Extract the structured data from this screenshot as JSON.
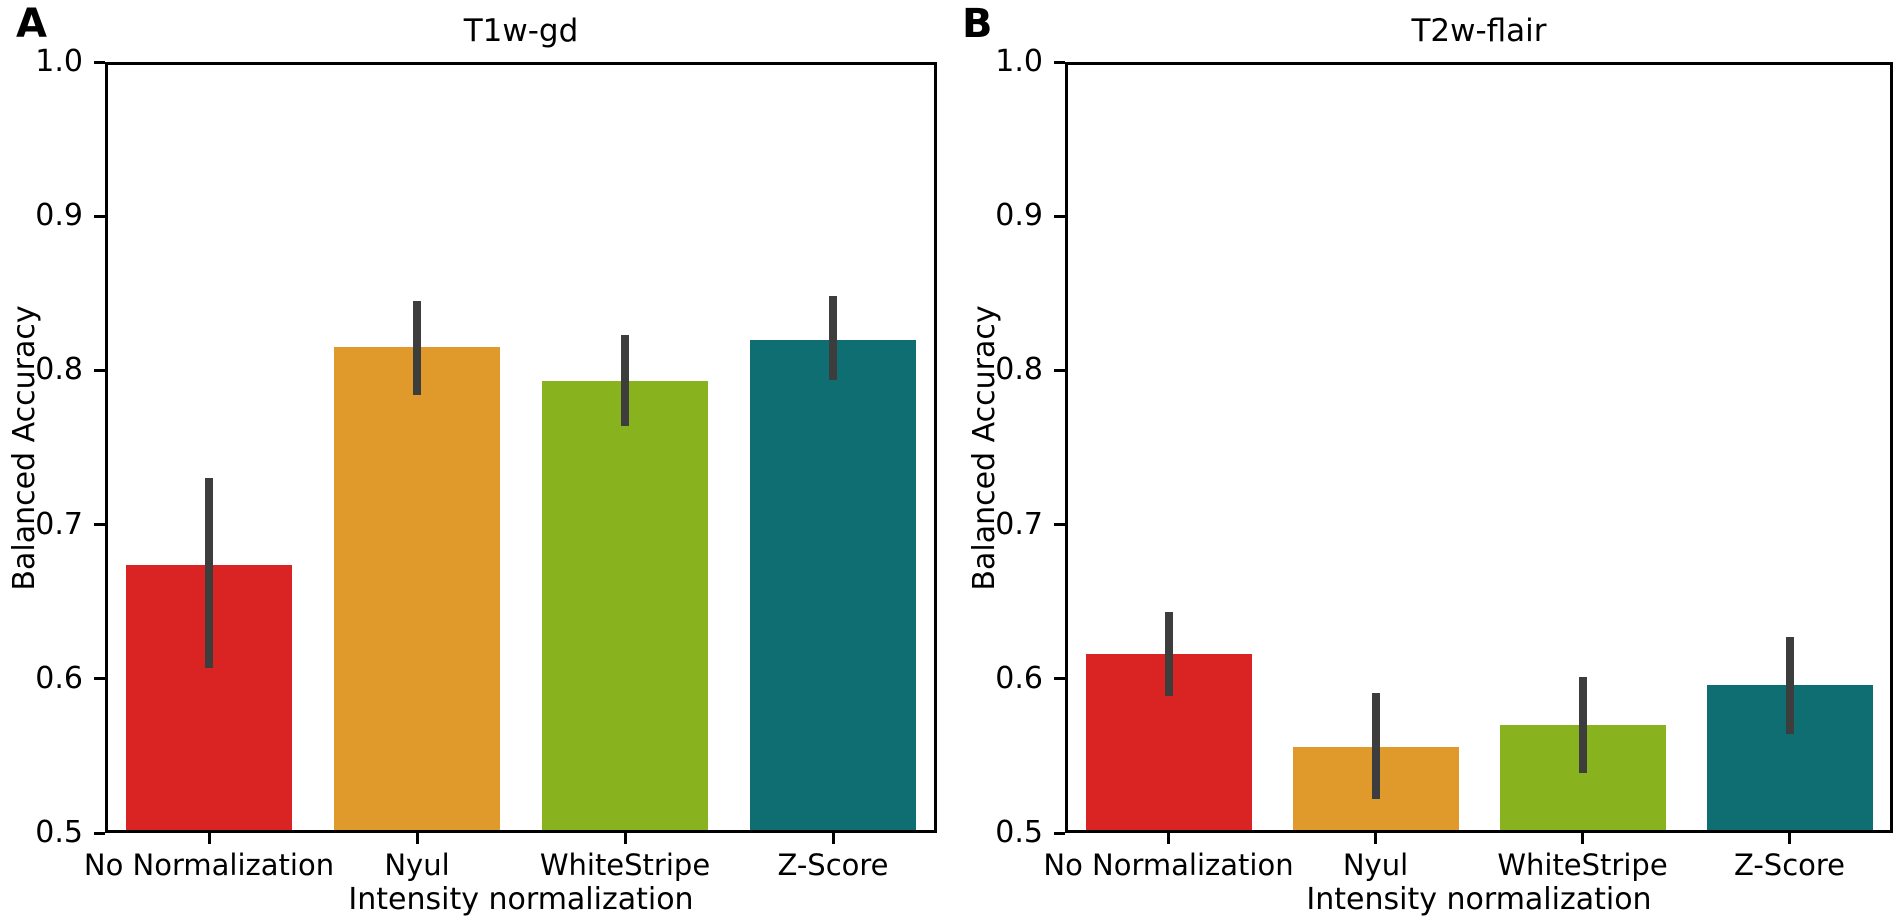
{
  "panels": [
    {
      "letter": "A"
    },
    {
      "letter": "B"
    }
  ],
  "chart_data": [
    {
      "type": "bar",
      "panel": "A",
      "title": "T1w-gd",
      "xlabel": "Intensity normalization",
      "ylabel": "Balanced Accuracy",
      "ylim": [
        0.5,
        1.0
      ],
      "yticks": [
        0.5,
        0.6,
        0.7,
        0.8,
        0.9,
        1.0
      ],
      "ytick_labels": [
        "0.5",
        "0.6",
        "0.7",
        "0.8",
        "0.9",
        "1.0"
      ],
      "categories": [
        "No Normalization",
        "Nyul",
        "WhiteStripe",
        "Z-Score"
      ],
      "values": [
        0.674,
        0.815,
        0.793,
        0.82
      ],
      "error_low": [
        0.607,
        0.784,
        0.764,
        0.794
      ],
      "error_high": [
        0.73,
        0.845,
        0.823,
        0.848
      ],
      "bar_colors": [
        "#d92423",
        "#e0992b",
        "#88b21e",
        "#0f6e72"
      ],
      "error_bar_color": "#3d3d3d",
      "axis_color": "#000000",
      "background_color": "#ffffff",
      "grid": false,
      "legend": false
    },
    {
      "type": "bar",
      "panel": "B",
      "title": "T2w-flair",
      "xlabel": "Intensity normalization",
      "ylabel": "Balanced Accuracy",
      "ylim": [
        0.5,
        1.0
      ],
      "yticks": [
        0.5,
        0.6,
        0.7,
        0.8,
        0.9,
        1.0
      ],
      "ytick_labels": [
        "0.5",
        "0.6",
        "0.7",
        "0.8",
        "0.9",
        "1.0"
      ],
      "categories": [
        "No Normalization",
        "Nyul",
        "WhiteStripe",
        "Z-Score"
      ],
      "values": [
        0.616,
        0.556,
        0.57,
        0.596
      ],
      "error_low": [
        0.589,
        0.522,
        0.539,
        0.564
      ],
      "error_high": [
        0.643,
        0.591,
        0.601,
        0.627
      ],
      "bar_colors": [
        "#d92423",
        "#e0992b",
        "#88b21e",
        "#0f6e72"
      ],
      "error_bar_color": "#3d3d3d",
      "axis_color": "#000000",
      "background_color": "#ffffff",
      "grid": false,
      "legend": false
    }
  ]
}
